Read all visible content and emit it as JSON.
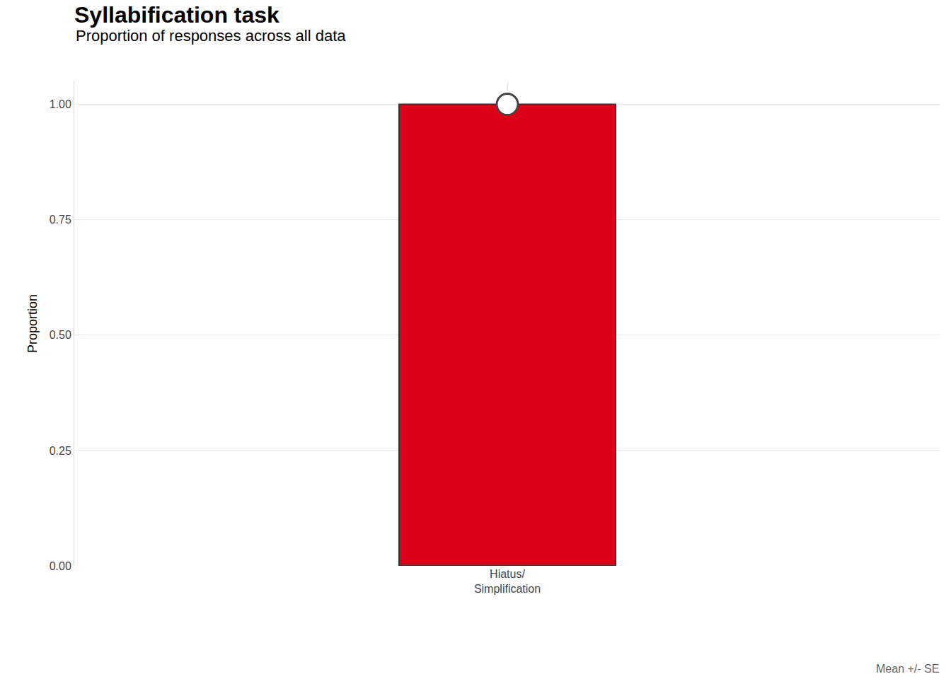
{
  "chart_data": {
    "type": "bar",
    "title": "Syllabification task",
    "subtitle": "Proportion of responses across all data",
    "y_label": "Proportion",
    "categories": [
      "Hiatus/\nSimplification"
    ],
    "values": [
      1.0
    ],
    "se": [
      0
    ],
    "color": "#DC0019",
    "marker": "circle",
    "caption": "Mean +/- SE",
    "ylim": [
      0,
      1.05
    ],
    "yticks": [
      {
        "value": 0,
        "label": "0.00"
      },
      {
        "value": 0.25,
        "label": "0.25"
      },
      {
        "value": 0.5,
        "label": "0.50"
      },
      {
        "value": 0.75,
        "label": "0.75"
      },
      {
        "value": 1,
        "label": "1.00"
      }
    ],
    "grid": true
  }
}
